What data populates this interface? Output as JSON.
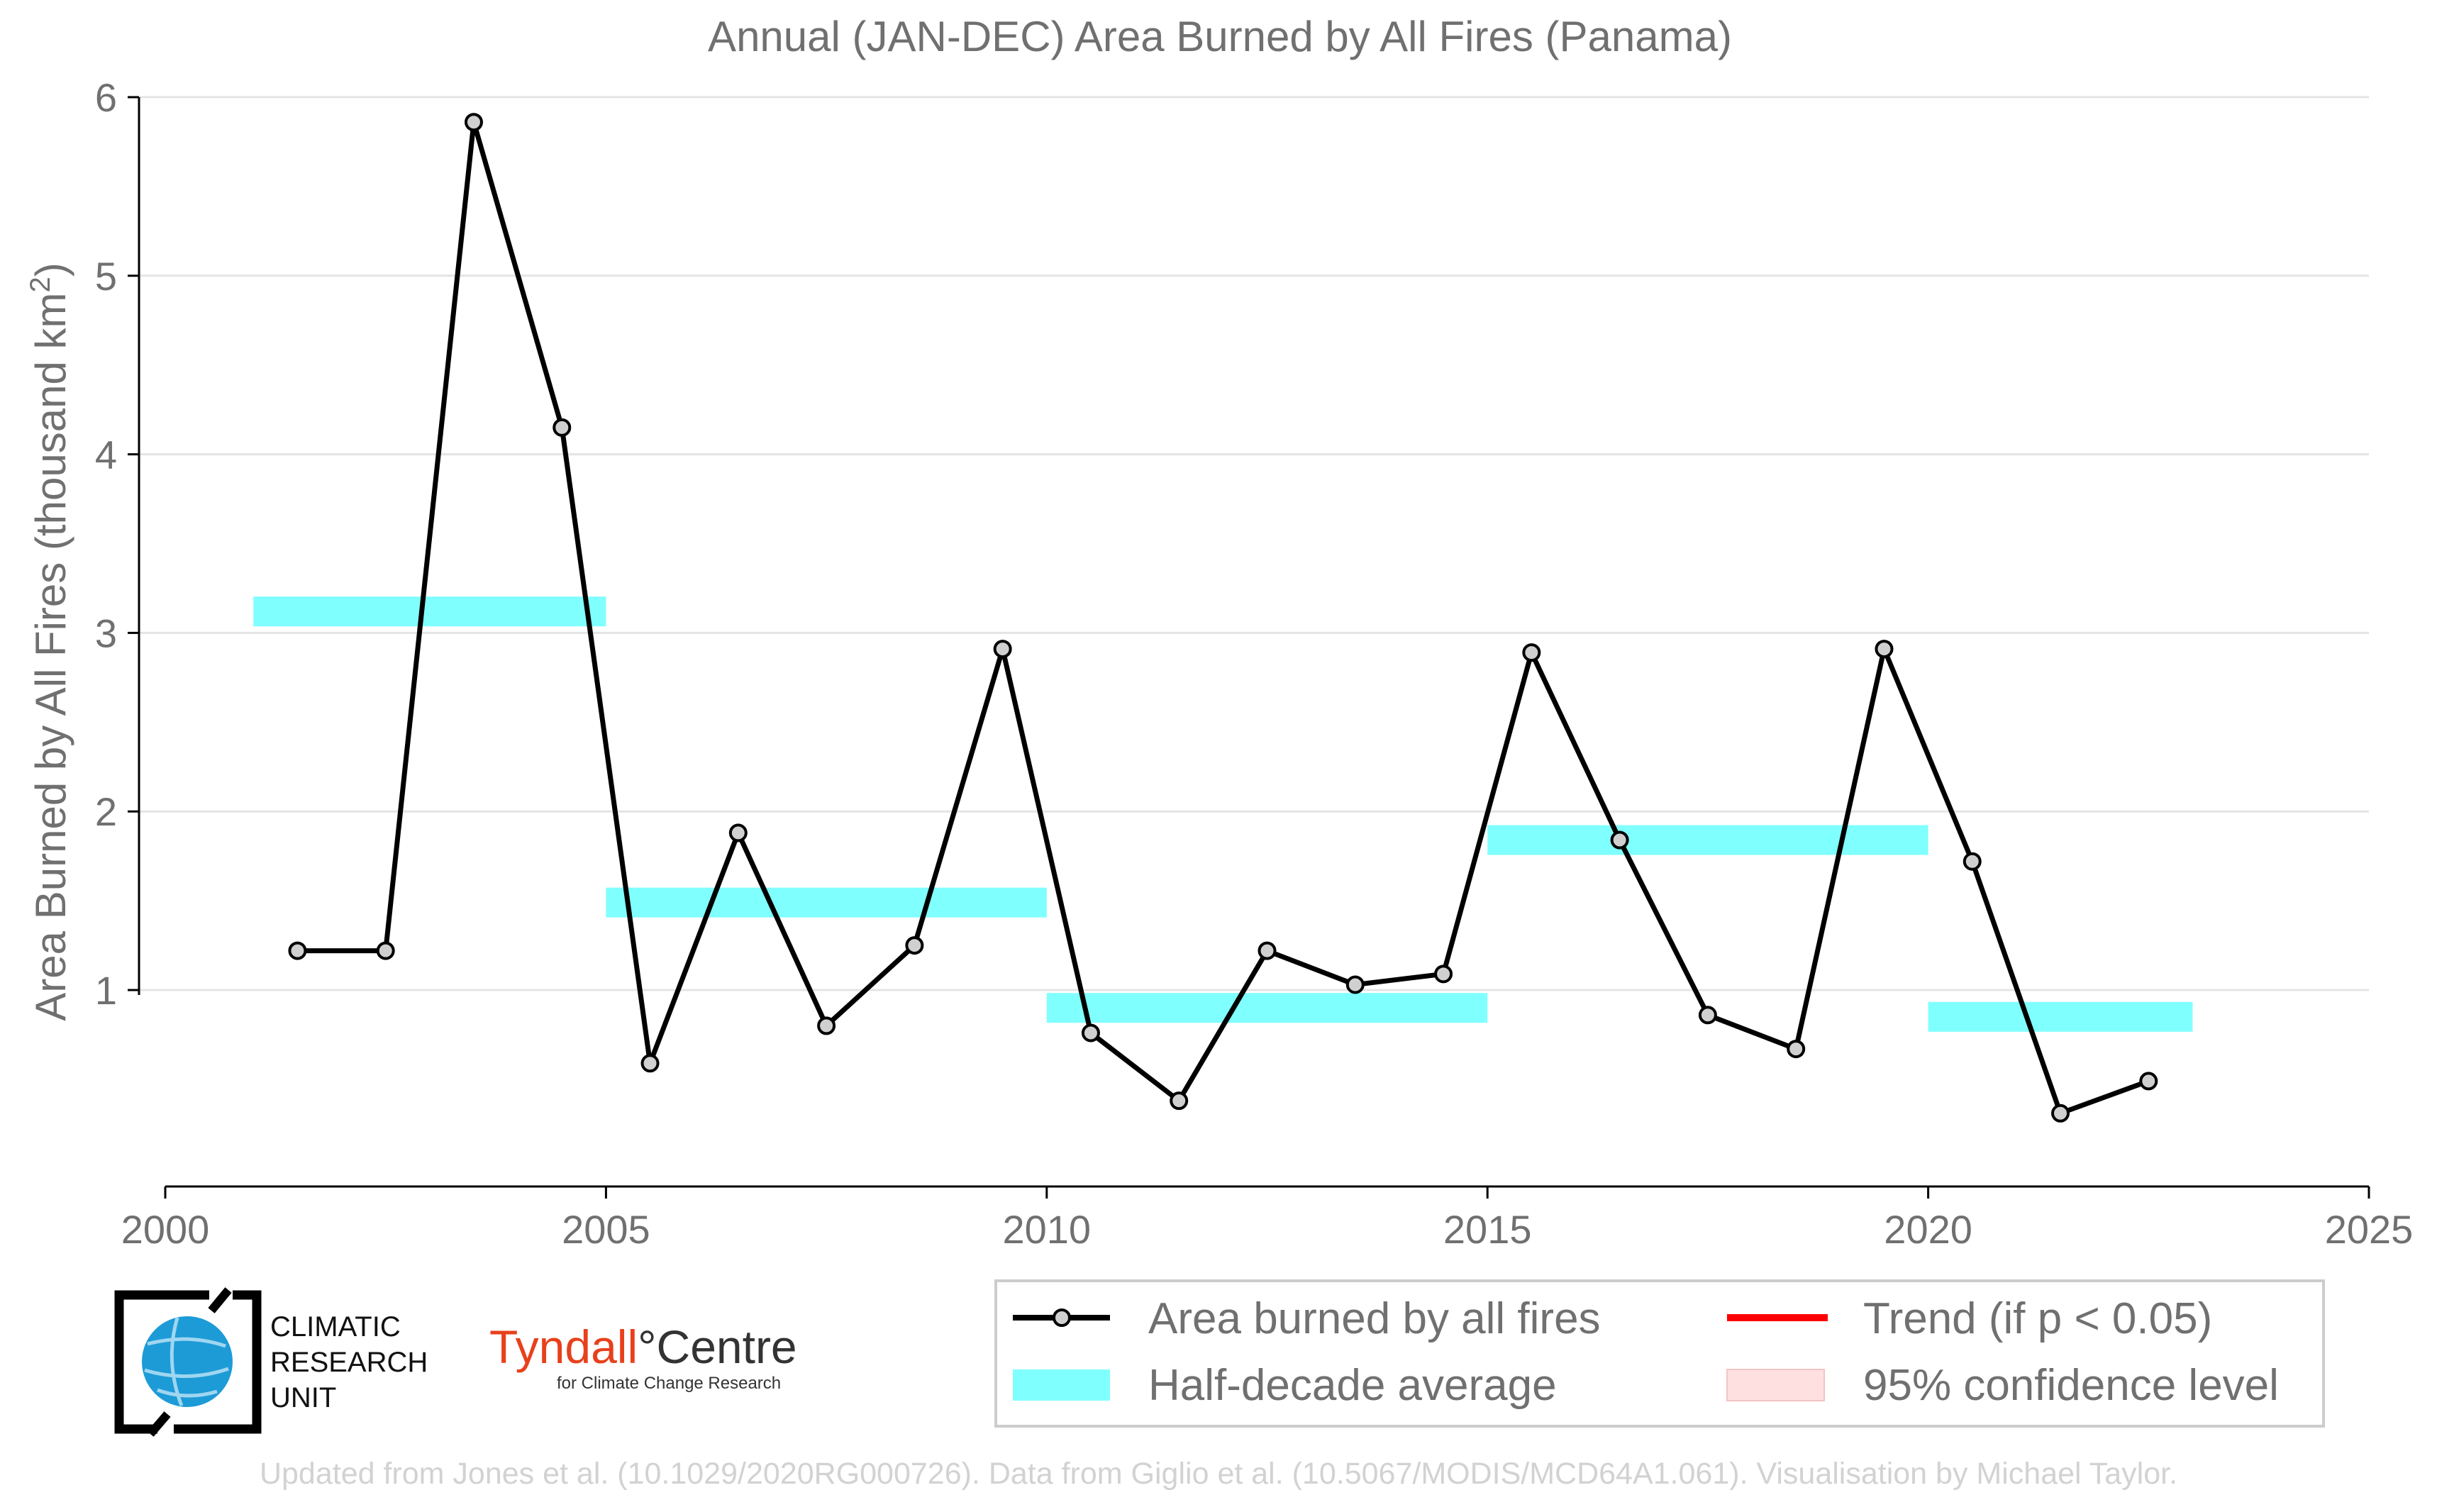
{
  "chart_data": {
    "type": "line",
    "title": "Annual (JAN-DEC) Area Burned by All Fires (Panama)",
    "xlabel": "",
    "ylabel": "Area Burned by All Fires (thousand km",
    "ylabel_sup": "2",
    "ylabel_close": ")",
    "xlim": [
      2000,
      2025
    ],
    "ylim": [
      -0.1,
      6
    ],
    "x_ticks": [
      2000,
      2005,
      2010,
      2015,
      2020,
      2025
    ],
    "y_ticks": [
      1,
      2,
      3,
      4,
      5,
      6
    ],
    "grid": "horizontal",
    "legend_position": "bottom-right",
    "series": [
      {
        "name": "Area burned by all fires",
        "color": "#000000",
        "marker_fill": "#d0d0d0",
        "x": [
          2001.5,
          2002.5,
          2003.5,
          2004.5,
          2005.5,
          2006.5,
          2007.5,
          2008.5,
          2009.5,
          2010.5,
          2011.5,
          2012.5,
          2013.5,
          2014.5,
          2015.5,
          2016.5,
          2017.5,
          2018.5,
          2019.5,
          2020.5,
          2021.5,
          2022.5
        ],
        "values": [
          1.22,
          1.22,
          5.86,
          4.15,
          0.59,
          1.88,
          0.8,
          1.25,
          2.91,
          0.76,
          0.38,
          1.22,
          1.03,
          1.09,
          2.89,
          1.84,
          0.86,
          0.67,
          2.91,
          1.72,
          0.31,
          0.49
        ]
      }
    ],
    "half_decade_average": {
      "name": "Half-decade average",
      "color": "#80ffff",
      "segments": [
        {
          "x_start": 2001,
          "x_end": 2005,
          "value": 3.12
        },
        {
          "x_start": 2005,
          "x_end": 2010,
          "value": 1.49
        },
        {
          "x_start": 2010,
          "x_end": 2015,
          "value": 0.9
        },
        {
          "x_start": 2015,
          "x_end": 2020,
          "value": 1.84
        },
        {
          "x_start": 2020,
          "x_end": 2023,
          "value": 0.85
        }
      ]
    },
    "legend": [
      {
        "label": "Area burned by all fires",
        "kind": "line-marker",
        "color": "#000000"
      },
      {
        "label": "Trend (if p < 0.05)",
        "kind": "line",
        "color": "#ff0000"
      },
      {
        "label": "Half-decade average",
        "kind": "patch",
        "color": "#80ffff"
      },
      {
        "label": "95% confidence level",
        "kind": "patch",
        "color": "#ffe0e0"
      }
    ]
  },
  "logos": {
    "cru_line1": "CLIMATIC",
    "cru_line2": "RESEARCH",
    "cru_line3": "UNIT",
    "tyndall_main": "Tyndall",
    "tyndall_degree": "°",
    "tyndall_centre": "Centre",
    "tyndall_sub": "for Climate Change Research"
  },
  "credit": "Updated from Jones et al. (10.1029/2020RG000726). Data from Giglio et al. (10.5067/MODIS/MCD64A1.061). Visualisation by Michael Taylor."
}
